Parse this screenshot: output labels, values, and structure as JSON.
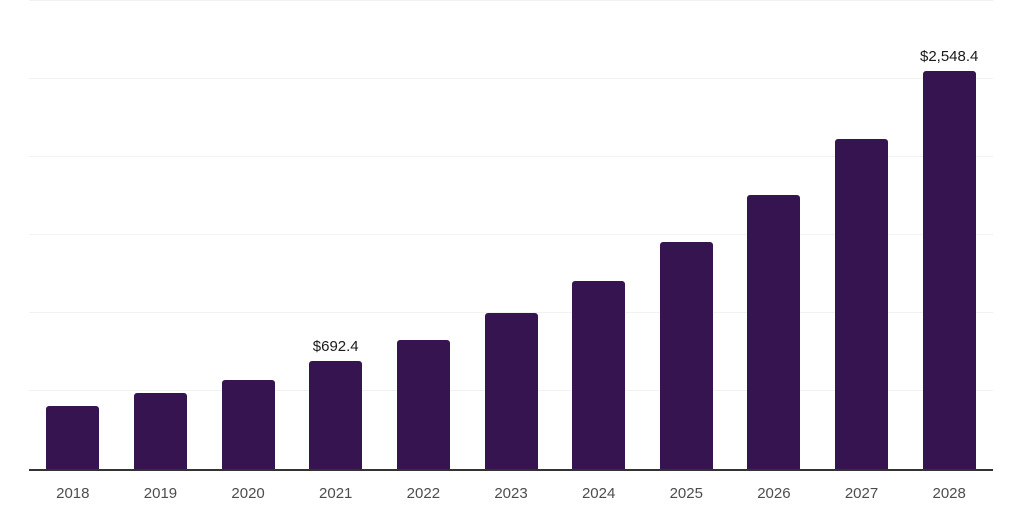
{
  "page": {
    "background_color": "#ffffff",
    "title": "",
    "notes": "bar chart only, no chart title, no y-axis tick labels, no legend"
  },
  "chart_data": {
    "type": "bar",
    "title": "",
    "xlabel": "",
    "ylabel": "",
    "categories": [
      "2018",
      "2019",
      "2020",
      "2021",
      "2022",
      "2023",
      "2024",
      "2025",
      "2026",
      "2027",
      "2028"
    ],
    "values": [
      405,
      485,
      571,
      692.4,
      830,
      1001,
      1206,
      1455,
      1757,
      2116,
      2548.4
    ],
    "bar_labels": [
      "",
      "",
      "",
      "$692.4",
      "",
      "",
      "",
      "",
      "",
      "",
      "$2,548.4"
    ],
    "ylim": [
      0,
      3000
    ],
    "grid_step": 500,
    "grid": "horizontal",
    "y_tick_labels_visible": false,
    "legend_position": "none",
    "colors": {
      "bar": "#361450",
      "gridline": "#f2f2f2",
      "axis_line": "#333333",
      "tick_label": "#4d4d4d",
      "value_label": "#1a1a1a"
    }
  }
}
